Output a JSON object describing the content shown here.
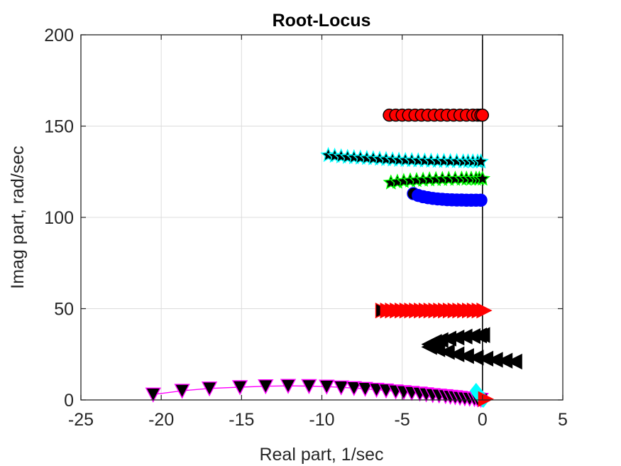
{
  "chart_data": {
    "type": "scatter",
    "title": "Root-Locus",
    "xlabel": "Real part, 1/sec",
    "ylabel": "Imag part, rad/sec",
    "xlim": [
      -25,
      5
    ],
    "ylim": [
      0,
      200
    ],
    "xticks": [
      -25,
      -20,
      -15,
      -10,
      -5,
      0,
      5
    ],
    "yticks": [
      0,
      50,
      100,
      150,
      200
    ],
    "xtick_labels": [
      "-25",
      "-20",
      "-15",
      "-10",
      "-5",
      "0",
      "5"
    ],
    "ytick_labels": [
      "0",
      "50",
      "100",
      "150",
      "200"
    ],
    "grid": true,
    "series": [
      {
        "marker": "circle",
        "fill": "#ff0000",
        "edge": "#000000",
        "start_fill": "#ff0000",
        "x": [
          -5.8,
          -5.4,
          -5.0,
          -4.6,
          -4.2,
          -3.8,
          -3.4,
          -3.0,
          -2.6,
          -2.2,
          -1.8,
          -1.4,
          -1.0,
          -0.6,
          -0.3,
          -0.1,
          0.0
        ],
        "y": [
          156,
          156,
          156,
          156,
          156,
          156,
          156,
          156,
          156,
          156,
          156,
          156,
          156,
          156,
          156,
          156,
          156
        ]
      },
      {
        "marker": "star",
        "fill": "#000000",
        "edge": "#00ffff",
        "start_fill": "#000000",
        "x": [
          -9.6,
          -9.2,
          -8.8,
          -8.4,
          -8.0,
          -7.6,
          -7.2,
          -6.8,
          -6.4,
          -6.0,
          -5.6,
          -5.2,
          -4.8,
          -4.4,
          -4.0,
          -3.6,
          -3.2,
          -2.8,
          -2.4,
          -2.0,
          -1.6,
          -1.2,
          -0.9,
          -0.6,
          -0.3,
          -0.1
        ],
        "y": [
          134,
          133.6,
          133.3,
          133,
          132.8,
          132.6,
          132.4,
          132.2,
          132,
          131.8,
          131.6,
          131.4,
          131.3,
          131.2,
          131.1,
          131,
          130.9,
          130.8,
          130.8,
          130.7,
          130.7,
          130.6,
          130.6,
          130.6,
          130.5,
          130.5
        ]
      },
      {
        "marker": "star",
        "fill": "#000000",
        "edge": "#00ff00",
        "start_fill": "#000000",
        "x": [
          -5.7,
          -5.3,
          -4.9,
          -4.5,
          -4.1,
          -3.7,
          -3.3,
          -2.9,
          -2.5,
          -2.1,
          -1.7,
          -1.3,
          -1.0,
          -0.7,
          -0.4,
          -0.2,
          0.0
        ],
        "y": [
          119,
          119.4,
          119.8,
          120.1,
          120.3,
          120.5,
          120.7,
          120.8,
          120.9,
          121,
          121,
          121.1,
          121.1,
          121.1,
          121.1,
          121.1,
          121.1
        ]
      },
      {
        "marker": "circle",
        "fill": "#0000ff",
        "edge": "#0000ff",
        "start_fill": "#000000",
        "x": [
          -4.3,
          -4.0,
          -3.7,
          -3.4,
          -3.1,
          -2.8,
          -2.5,
          -2.2,
          -1.9,
          -1.6,
          -1.3,
          -1.0,
          -0.7,
          -0.4,
          -0.1
        ],
        "y": [
          113,
          112,
          111.3,
          110.8,
          110.4,
          110.1,
          109.9,
          109.7,
          109.6,
          109.5,
          109.5,
          109.4,
          109.4,
          109.4,
          109.4
        ]
      },
      {
        "marker": "triangle-right",
        "fill": "#ff0000",
        "edge": "#ff0000",
        "start_fill": "#000000",
        "x": [
          -6.2,
          -5.9,
          -5.6,
          -5.3,
          -5.0,
          -4.7,
          -4.4,
          -4.1,
          -3.8,
          -3.5,
          -3.2,
          -2.9,
          -2.6,
          -2.3,
          -2.0,
          -1.7,
          -1.4,
          -1.1,
          -0.8,
          -0.5,
          -0.2,
          0.1
        ],
        "y": [
          49,
          49,
          49,
          49,
          49,
          49,
          49,
          49,
          49,
          49,
          49,
          49,
          49,
          49,
          49,
          49,
          49,
          49,
          49,
          49,
          49,
          49
        ]
      },
      {
        "marker": "triangle-left",
        "fill": "#000000",
        "edge": "#000000",
        "start_fill": "#000000",
        "x": [
          2.0,
          1.4,
          0.8,
          0.2,
          -0.4,
          -1.0,
          -1.6,
          -2.2,
          -2.8,
          -3.3,
          -3.3,
          -3.0,
          -2.6,
          -2.1,
          -1.6,
          -1.1,
          -0.6,
          -0.2,
          0.0,
          0.0
        ],
        "y": [
          21,
          21.5,
          22,
          22.6,
          23.2,
          24,
          25,
          26.3,
          27.8,
          29,
          30.5,
          31.8,
          32.8,
          33.6,
          34.2,
          34.7,
          35,
          35.3,
          35.5,
          35.6
        ]
      },
      {
        "marker": "triangle-down",
        "fill": "#000000",
        "edge": "#ff00ff",
        "start_fill": "#000000",
        "line": "#ff00ff",
        "x": [
          -20.5,
          -18.7,
          -17.0,
          -15.1,
          -13.5,
          -12.1,
          -10.8,
          -9.7,
          -8.8,
          -8.0,
          -7.3,
          -6.6,
          -6.0,
          -5.4,
          -4.9,
          -4.4,
          -3.9,
          -3.5,
          -3.1,
          -2.7,
          -2.3,
          -2.0,
          -1.7,
          -1.4,
          -1.1,
          -0.8,
          -0.5,
          -0.3,
          -0.1
        ],
        "y": [
          3,
          5,
          6.3,
          7,
          7.5,
          7.7,
          7.6,
          7.3,
          6.9,
          6.5,
          6.1,
          5.6,
          5.2,
          4.7,
          4.3,
          3.9,
          3.5,
          3.1,
          2.7,
          2.4,
          2.1,
          1.8,
          1.5,
          1.2,
          0.9,
          0.7,
          0.5,
          0.3,
          0.1
        ]
      },
      {
        "marker": "diamond",
        "fill": "#00ffff",
        "edge": "#00ffff",
        "start_fill": "#00ffff",
        "x": [
          -0.4,
          -0.3,
          -0.2,
          -0.1,
          0.0,
          0.0,
          0.05
        ],
        "y": [
          5,
          3.5,
          2.5,
          1.6,
          0.8,
          0.3,
          0.0
        ]
      },
      {
        "marker": "triangle-right",
        "fill": "#ff0000",
        "edge": "#ff0000",
        "start_fill": "#ff0000",
        "x": [
          0.2
        ],
        "y": [
          0.5
        ]
      }
    ]
  }
}
